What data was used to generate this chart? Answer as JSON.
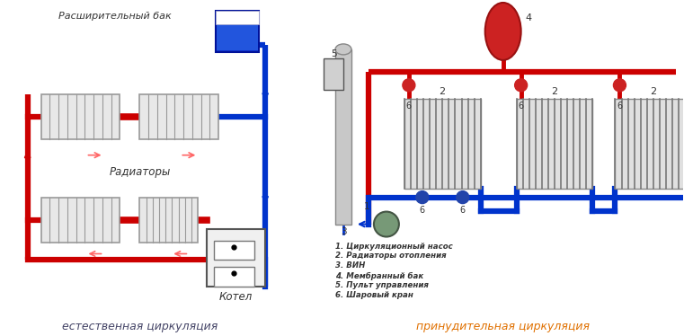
{
  "bg_color": "#ffffff",
  "left_title": "естественная циркуляция",
  "right_title": "принудительная циркуляция",
  "left_label_tank": "Расширительный бак",
  "left_label_radiators": "Радиаторы",
  "left_label_boiler": "Котел",
  "legend_1": "1. Циркуляционный насос",
  "legend_2": "2. Радиаторы отопления",
  "legend_3": "3. ВИН",
  "legend_4": "4. Мембранный бак",
  "legend_5": "5. Пульт управления",
  "legend_6": "6. Шаровый кран",
  "pipe_red": "#cc0000",
  "pipe_blue": "#0033cc",
  "orange_title": "#e07000",
  "gray_title": "#444466",
  "label_num_2": "2",
  "label_num_4": "4",
  "label_num_5": "5",
  "label_num_6": "6",
  "label_num_3": "3",
  "label_num_1": "1"
}
